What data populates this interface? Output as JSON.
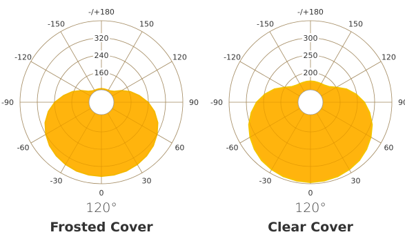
{
  "chart_data": [
    {
      "type": "polar-area",
      "title": "",
      "angle_ticks": [
        "-/+180",
        "150",
        "120",
        "90",
        "60",
        "30",
        "0",
        "-30",
        "-60",
        "-90",
        "-120",
        "-150"
      ],
      "radial_ticks": [
        160,
        240,
        320
      ],
      "radial_range": [
        80,
        400
      ],
      "beam_angle_label": "120°",
      "cover_label": "Frosted Cover",
      "fill_color": "#FFB000",
      "outline_color": "#F5B800",
      "grid": true,
      "series": [
        {
          "angles": [
            0,
            10,
            20,
            30,
            40,
            50,
            60,
            70,
            80,
            90,
            100,
            110,
            120,
            130,
            140,
            150,
            160,
            170,
            180,
            190,
            200,
            210,
            220,
            230,
            240,
            250,
            260,
            270,
            280,
            290,
            300,
            310,
            320,
            330,
            340,
            350
          ],
          "values": [
            365,
            364,
            361,
            355,
            347,
            336,
            320,
            300,
            272,
            238,
            200,
            165,
            130,
            100,
            90,
            86,
            85,
            85,
            85,
            85,
            85,
            86,
            90,
            100,
            130,
            165,
            200,
            238,
            272,
            300,
            320,
            336,
            347,
            355,
            361,
            364
          ]
        }
      ]
    },
    {
      "type": "polar-area",
      "title": "",
      "angle_ticks": [
        "-/+180",
        "150",
        "120",
        "90",
        "60",
        "30",
        "0",
        "-30",
        "-60",
        "-90",
        "-120",
        "-150"
      ],
      "radial_ticks": [
        200,
        250,
        300
      ],
      "radial_range": [
        150,
        350
      ],
      "beam_angle_label": "120°",
      "cover_label": "Clear Cover",
      "fill_color": "#FFB000",
      "outline_color": "#F5C400",
      "grid": true,
      "series": [
        {
          "angles": [
            0,
            10,
            20,
            30,
            40,
            50,
            60,
            70,
            80,
            90,
            100,
            110,
            120,
            130,
            140,
            150,
            160,
            170,
            180,
            190,
            200,
            210,
            220,
            230,
            240,
            250,
            260,
            270,
            280,
            290,
            300,
            310,
            320,
            330,
            340,
            350
          ],
          "values": [
            346,
            345,
            343,
            339,
            334,
            326,
            316,
            304,
            288,
            270,
            248,
            225,
            200,
            184,
            178,
            176,
            175,
            175,
            175,
            175,
            175,
            176,
            178,
            184,
            200,
            225,
            248,
            270,
            288,
            304,
            316,
            326,
            334,
            339,
            343,
            345
          ]
        }
      ]
    }
  ]
}
